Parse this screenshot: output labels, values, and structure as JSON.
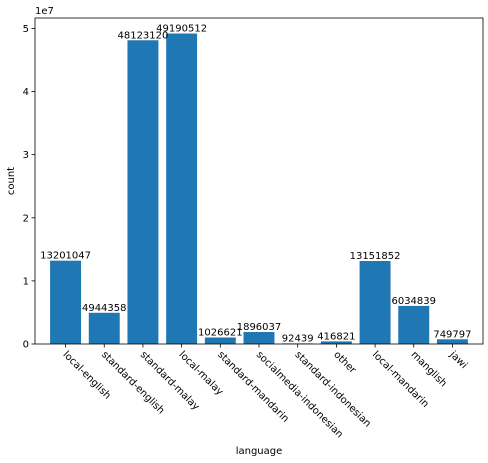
{
  "chart_data": {
    "type": "bar",
    "title": "",
    "xlabel": "language",
    "ylabel": "count",
    "offset_text": "1e7",
    "categories": [
      "local-english",
      "standard-english",
      "standard-malay",
      "local-malay",
      "standard-mandarin",
      "socialmedia-indonesian",
      "standard-indonesian",
      "other",
      "local-mandarin",
      "manglish",
      "jawi"
    ],
    "values": [
      13201047,
      4944358,
      48123120,
      49190512,
      1026621,
      1896037,
      92439,
      416821,
      13151852,
      6034839,
      749797
    ],
    "data_labels": [
      "13201047",
      "4944358",
      "48123120",
      "49190512",
      "1026621",
      "1896037",
      "92439",
      "416821",
      "13151852",
      "6034839",
      "749797"
    ],
    "yticks": [
      0,
      10000000,
      20000000,
      30000000,
      40000000,
      50000000
    ],
    "ytick_labels": [
      "0",
      "1",
      "2",
      "3",
      "4",
      "5"
    ],
    "ylim": [
      0,
      51650038
    ],
    "bar_color": "#1f77b4",
    "grid": false,
    "legend": "none"
  }
}
